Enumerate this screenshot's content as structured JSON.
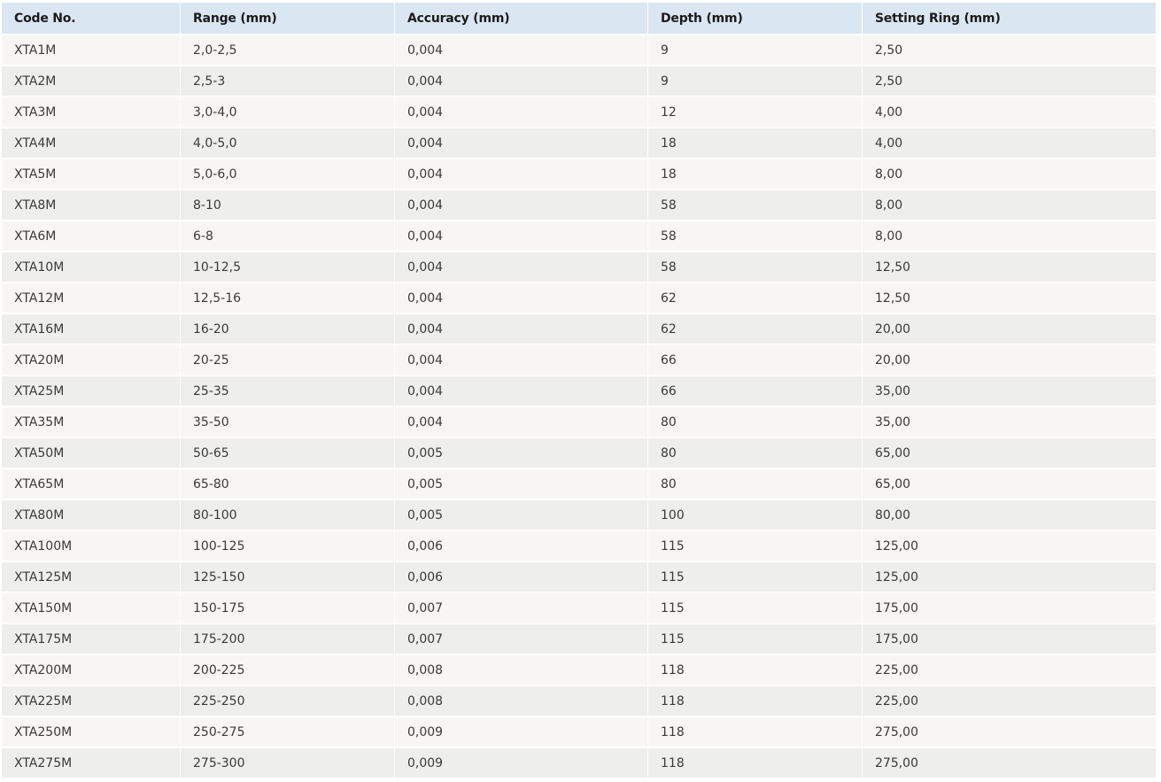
{
  "table": {
    "headers": [
      "Code No.",
      "Range (mm)",
      "Accuracy (mm)",
      "Depth (mm)",
      "Setting Ring (mm)"
    ],
    "rows": [
      [
        "XTA1M",
        "2,0-2,5",
        "0,004",
        "9",
        "2,50"
      ],
      [
        "XTA2M",
        "2,5-3",
        "0,004",
        "9",
        "2,50"
      ],
      [
        "XTA3M",
        "3,0-4,0",
        "0,004",
        "12",
        "4,00"
      ],
      [
        "XTA4M",
        "4,0-5,0",
        "0,004",
        "18",
        "4,00"
      ],
      [
        "XTA5M",
        "5,0-6,0",
        "0,004",
        "18",
        "8,00"
      ],
      [
        "XTA8M",
        "8-10",
        "0,004",
        "58",
        "8,00"
      ],
      [
        "XTA6M",
        "6-8",
        "0,004",
        "58",
        "8,00"
      ],
      [
        "XTA10M",
        "10-12,5",
        "0,004",
        "58",
        "12,50"
      ],
      [
        "XTA12M",
        "12,5-16",
        "0,004",
        "62",
        "12,50"
      ],
      [
        "XTA16M",
        "16-20",
        "0,004",
        "62",
        "20,00"
      ],
      [
        "XTA20M",
        "20-25",
        "0,004",
        "66",
        "20,00"
      ],
      [
        "XTA25M",
        "25-35",
        "0,004",
        "66",
        "35,00"
      ],
      [
        "XTA35M",
        "35-50",
        "0,004",
        "80",
        "35,00"
      ],
      [
        "XTA50M",
        "50-65",
        "0,005",
        "80",
        "65,00"
      ],
      [
        "XTA65M",
        "65-80",
        "0,005",
        "80",
        "65,00"
      ],
      [
        "XTA80M",
        "80-100",
        "0,005",
        "100",
        "80,00"
      ],
      [
        "XTA100M",
        "100-125",
        "0,006",
        "115",
        "125,00"
      ],
      [
        "XTA125M",
        "125-150",
        "0,006",
        "115",
        "125,00"
      ],
      [
        "XTA150M",
        "150-175",
        "0,007",
        "115",
        "175,00"
      ],
      [
        "XTA175M",
        "175-200",
        "0,007",
        "115",
        "175,00"
      ],
      [
        "XTA200M",
        "200-225",
        "0,008",
        "118",
        "225,00"
      ],
      [
        "XTA225M",
        "225-250",
        "0,008",
        "118",
        "225,00"
      ],
      [
        "XTA250M",
        "250-275",
        "0,009",
        "118",
        "275,00"
      ],
      [
        "XTA275M",
        "275-300",
        "0,009",
        "118",
        "275,00"
      ]
    ]
  },
  "colors": {
    "header_bg": "#dae6f1",
    "row_odd_bg": "#f7f6f4",
    "row_even_bg": "#eeeeec"
  }
}
